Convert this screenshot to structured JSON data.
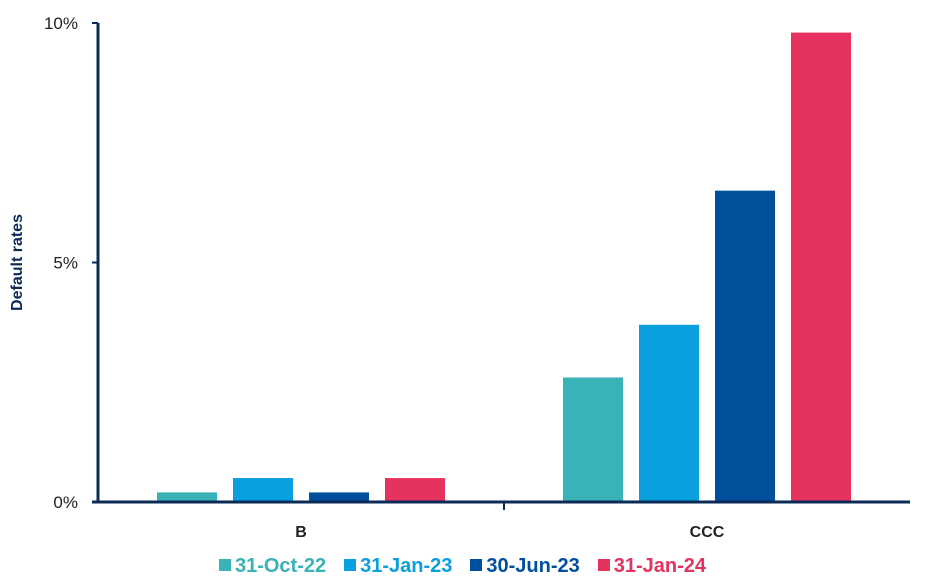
{
  "chart_data": {
    "type": "bar",
    "categories": [
      "B",
      "CCC"
    ],
    "series": [
      {
        "name": "31-Oct-22",
        "color": "#3ab3b8",
        "values": [
          0.2,
          2.6
        ]
      },
      {
        "name": "31-Jan-23",
        "color": "#0aa0e0",
        "values": [
          0.5,
          3.7
        ]
      },
      {
        "name": "30-Jun-23",
        "color": "#00509e",
        "values": [
          0.2,
          6.5
        ]
      },
      {
        "name": "31-Jan-24",
        "color": "#e5325e",
        "values": [
          0.5,
          9.8
        ]
      }
    ],
    "ylabel": "Default rates",
    "ylim": [
      0,
      10
    ],
    "yticks": [
      {
        "value": 0,
        "label": "0%"
      },
      {
        "value": 5,
        "label": "5%"
      },
      {
        "value": 10,
        "label": "10%"
      }
    ],
    "axis_color": "#0b2a55",
    "legend_position": "bottom",
    "grid": false
  }
}
